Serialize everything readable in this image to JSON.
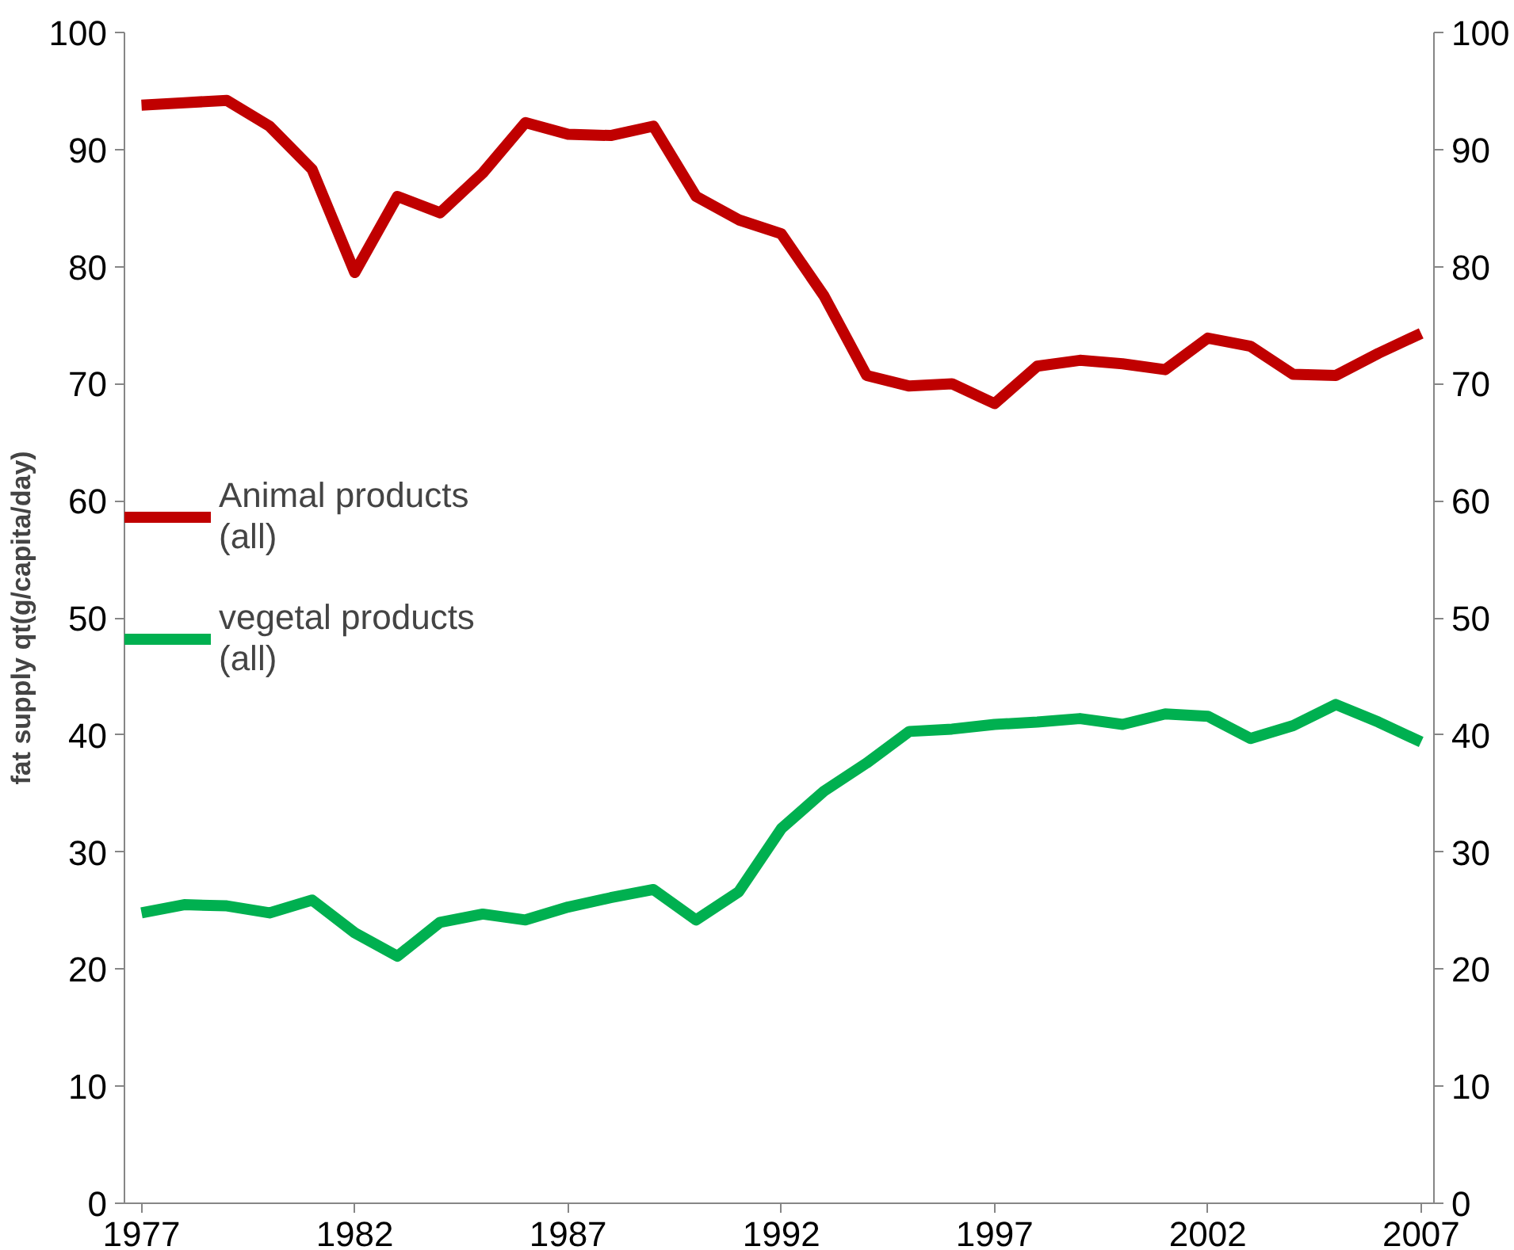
{
  "chart_data": {
    "type": "line",
    "ylabel": "fat supply qt(g/capita/day)",
    "x": [
      1977,
      1978,
      1979,
      1980,
      1981,
      1982,
      1983,
      1984,
      1985,
      1986,
      1987,
      1988,
      1989,
      1990,
      1991,
      1992,
      1993,
      1994,
      1995,
      1996,
      1997,
      1998,
      1999,
      2000,
      2001,
      2002,
      2003,
      2004,
      2005,
      2006,
      2007
    ],
    "series": [
      {
        "name": "Animal products (all)",
        "color": "#c00000",
        "values": [
          93.8,
          94.0,
          94.2,
          92.0,
          88.3,
          79.5,
          86.0,
          84.6,
          88.0,
          92.3,
          91.3,
          91.2,
          92.0,
          86.0,
          84.0,
          82.8,
          77.5,
          70.7,
          69.8,
          70.0,
          68.3,
          71.5,
          72.0,
          71.7,
          71.2,
          73.9,
          73.2,
          70.8,
          70.7,
          72.6,
          74.3
        ]
      },
      {
        "name": "vegetal products (all)",
        "color": "#00b050",
        "values": [
          24.8,
          25.5,
          25.4,
          24.8,
          25.9,
          23.1,
          21.1,
          24.0,
          24.7,
          24.2,
          25.3,
          26.1,
          26.8,
          24.2,
          26.6,
          32.0,
          35.2,
          37.6,
          40.3,
          40.5,
          40.9,
          41.1,
          41.4,
          40.9,
          41.8,
          41.6,
          39.7,
          40.8,
          42.6,
          41.1,
          39.4
        ]
      }
    ],
    "xlim": [
      1976.6,
      2007.3
    ],
    "xticks": [
      1977,
      1982,
      1987,
      1992,
      1997,
      2002,
      2007
    ],
    "ylim": [
      0,
      100
    ],
    "yticks": [
      0,
      10,
      20,
      30,
      40,
      50,
      60,
      70,
      80,
      90,
      100
    ],
    "y2lim": [
      0,
      100
    ],
    "y2ticks": [
      0,
      10,
      20,
      30,
      40,
      50,
      60,
      70,
      80,
      90,
      100
    ],
    "grid": false,
    "legend": "left",
    "marker": "none",
    "line_style": "solid"
  }
}
